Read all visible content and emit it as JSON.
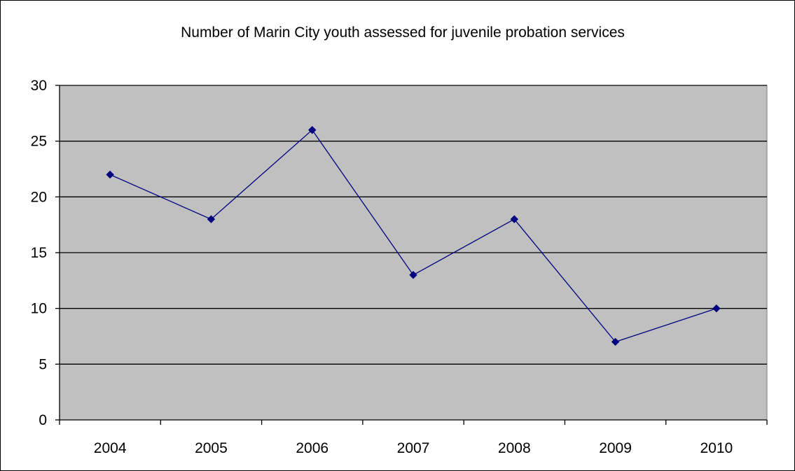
{
  "chart_data": {
    "type": "line",
    "title": "Number of Marin City youth assessed for juvenile probation services",
    "xlabel": "",
    "ylabel": "",
    "categories": [
      "2004",
      "2005",
      "2006",
      "2007",
      "2008",
      "2009",
      "2010"
    ],
    "series": [
      {
        "values": [
          22,
          18,
          26,
          13,
          18,
          7,
          10
        ],
        "color": "#000080",
        "marker": "diamond"
      }
    ],
    "ylim": [
      0,
      30
    ],
    "yticks": [
      0,
      5,
      10,
      15,
      20,
      25,
      30
    ],
    "grid": true,
    "legend": "none",
    "plot_background": "#C0C0C0",
    "gridline_color": "#000000"
  }
}
